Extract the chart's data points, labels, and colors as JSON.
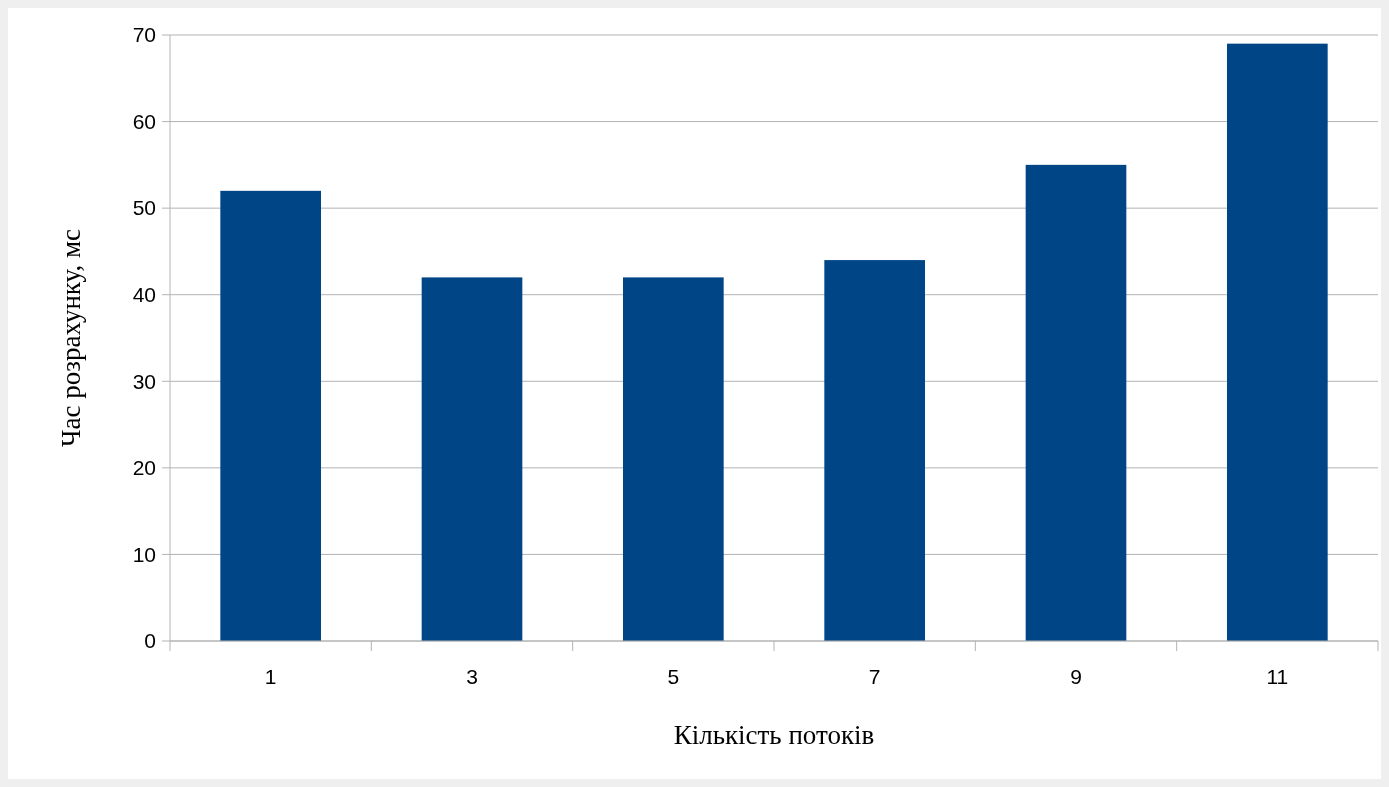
{
  "chart_data": {
    "type": "bar",
    "xlabel": "Кількість потоків",
    "ylabel": "Час розрахунку, мс",
    "categories": [
      "1",
      "3",
      "5",
      "7",
      "9",
      "11"
    ],
    "values": [
      52,
      42,
      42,
      44,
      55,
      69
    ],
    "color": "#004586",
    "ylim": [
      0,
      70
    ],
    "yticks": [
      0,
      10,
      20,
      30,
      40,
      50,
      60,
      70
    ],
    "grid": "y"
  }
}
